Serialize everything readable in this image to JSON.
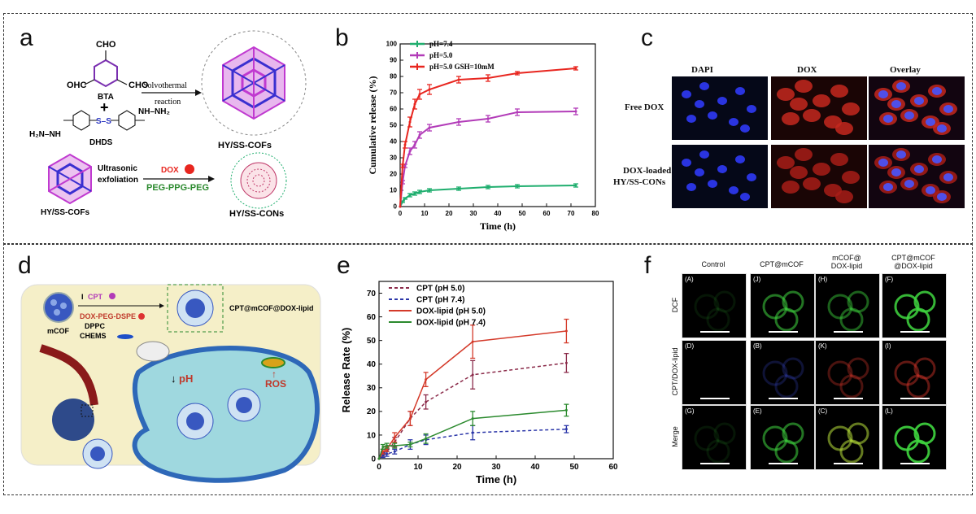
{
  "figure": {
    "panels": [
      "a",
      "b",
      "c",
      "d",
      "e",
      "f"
    ]
  },
  "panel_a": {
    "letter": "a",
    "cho_top": "CHO",
    "ohc_left": "OHC",
    "cho_right": "CHO",
    "bta": "BTA",
    "plus": "+",
    "hydrazide_left": "H₂N–NH",
    "hydrazide_right": "NH–NH₂",
    "ss": "S–S",
    "dhds": "DHDS",
    "arrow1_top": "Solvothermal",
    "arrow1_bottom": "reaction",
    "product1": "HY/SS-COFs",
    "arrow2_top": "Ultrasonic",
    "arrow2_bottom": "exfoliation",
    "dox_label": "DOX",
    "peg_label": "PEG-PPG-PEG",
    "left_bottom": "HY/SS-COFs",
    "product2": "HY/SS-CONs"
  },
  "panel_c": {
    "letter": "c",
    "col_headers": [
      "DAPI",
      "DOX",
      "Overlay"
    ],
    "row_headers": [
      "Free DOX",
      "DOX-loaded HY/SS-CONs"
    ],
    "row_header_line1": "DOX-loaded",
    "row_header_line2": "HY/SS-CONs"
  },
  "panel_d": {
    "letter": "d",
    "cpt": "CPT",
    "cpt_prefix": "I",
    "mcof": "mCOF",
    "dox_peg": "DOX-PEG-DSPE",
    "dppc": "DPPC",
    "chems": "CHEMS",
    "product": "CPT@mCOF@DOX-lipid",
    "ph": "pH",
    "ros": "ROS"
  },
  "panel_f": {
    "letter": "f",
    "col_headers": [
      "Control",
      "CPT@mCOF",
      "mCOF@\nDOX-lipid",
      "CPT@mCOF\n@DOX-lipid"
    ],
    "col_header_lines": [
      [
        "Control"
      ],
      [
        "CPT@mCOF"
      ],
      [
        "mCOF@",
        "DOX-lipid"
      ],
      [
        "CPT@mCOF",
        "@DOX-lipid"
      ]
    ],
    "row_headers": [
      "DCF",
      "CPT/DOX-lipid",
      "Merge"
    ],
    "cell_tags": [
      "(A)",
      "(D)",
      "(G)",
      "(J)",
      "(B)",
      "(E)",
      "(H)",
      "(K)",
      "(C)",
      "(F)",
      "(I)",
      "(L)"
    ]
  },
  "chart_data": [
    {
      "panel": "b",
      "type": "line",
      "letter": "b",
      "title": "",
      "xlabel": "Time (h)",
      "ylabel": "Cumulative release (%)",
      "xlim": [
        0,
        80
      ],
      "ylim": [
        0,
        100
      ],
      "xticks": [
        0,
        10,
        20,
        30,
        40,
        50,
        60,
        70,
        80
      ],
      "yticks": [
        0,
        10,
        20,
        30,
        40,
        50,
        60,
        70,
        80,
        90,
        100
      ],
      "series": [
        {
          "name": "pH=7.4",
          "color": "#1fae6e",
          "x": [
            0,
            1,
            2,
            4,
            6,
            8,
            12,
            24,
            36,
            48,
            72
          ],
          "y": [
            0,
            3,
            5,
            7,
            8,
            9,
            10,
            11,
            12,
            12.5,
            13
          ],
          "err": [
            0,
            0.5,
            0.5,
            1,
            1,
            1,
            1,
            1,
            1,
            1,
            1
          ]
        },
        {
          "name": "pH=5.0",
          "color": "#b23bb8",
          "x": [
            0,
            1,
            2,
            4,
            6,
            8,
            12,
            24,
            36,
            48,
            72
          ],
          "y": [
            0,
            15,
            25,
            34,
            38,
            44,
            48.5,
            52,
            54,
            58,
            58.5
          ],
          "err": [
            0,
            1,
            1,
            2,
            2,
            2,
            2,
            2,
            2,
            2,
            2
          ]
        },
        {
          "name": "pH=5.0  GSH=10mM",
          "color": "#e8261f",
          "x": [
            0,
            1,
            2,
            4,
            6,
            8,
            12,
            24,
            36,
            48,
            72
          ],
          "y": [
            0,
            25,
            38,
            52,
            63,
            69,
            72,
            78,
            79,
            82,
            85
          ],
          "err": [
            0,
            1,
            2,
            3,
            3,
            3,
            3,
            2,
            2,
            1,
            1
          ]
        }
      ]
    },
    {
      "panel": "e",
      "type": "line",
      "letter": "e",
      "title": "",
      "xlabel": "Time (h)",
      "ylabel": "Release Rate (%)",
      "xlim": [
        0,
        60
      ],
      "ylim": [
        0,
        75
      ],
      "xticks": [
        0,
        10,
        20,
        30,
        40,
        50,
        60
      ],
      "yticks": [
        0,
        10,
        20,
        30,
        40,
        50,
        60,
        70
      ],
      "series": [
        {
          "name": "CPT (pH 5.0)",
          "color": "#8b2b4a",
          "dashed": true,
          "x": [
            0,
            1,
            2,
            4,
            8,
            12,
            24,
            48
          ],
          "y": [
            0,
            2,
            3,
            7,
            17,
            24,
            35.5,
            40.5
          ],
          "err": [
            0,
            1,
            1,
            2,
            3,
            3,
            6,
            4
          ]
        },
        {
          "name": "CPT (pH 7.4)",
          "color": "#2a35a8",
          "dashed": true,
          "x": [
            0,
            1,
            2,
            4,
            8,
            12,
            24,
            48
          ],
          "y": [
            0,
            1.5,
            2,
            3,
            6,
            8,
            11,
            12.5
          ],
          "err": [
            0,
            1,
            1,
            1,
            2,
            2,
            3,
            1.5
          ]
        },
        {
          "name": "DOX-lipid (pH 5.0)",
          "color": "#d43a2a",
          "dashed": false,
          "x": [
            0,
            1,
            2,
            4,
            8,
            12,
            24,
            48
          ],
          "y": [
            0,
            3,
            4,
            9,
            17,
            33.5,
            49.5,
            54
          ],
          "err": [
            0,
            1,
            1,
            2,
            3,
            3,
            7,
            5
          ]
        },
        {
          "name": "DOX-lipid (pH 7.4)",
          "color": "#2b8a2e",
          "dashed": false,
          "x": [
            0,
            1,
            2,
            4,
            8,
            12,
            24,
            48
          ],
          "y": [
            0,
            5,
            5.5,
            5.5,
            6,
            8.5,
            17,
            20.5
          ],
          "err": [
            0,
            1,
            1,
            1,
            1,
            2,
            3,
            2.5
          ]
        }
      ]
    }
  ]
}
